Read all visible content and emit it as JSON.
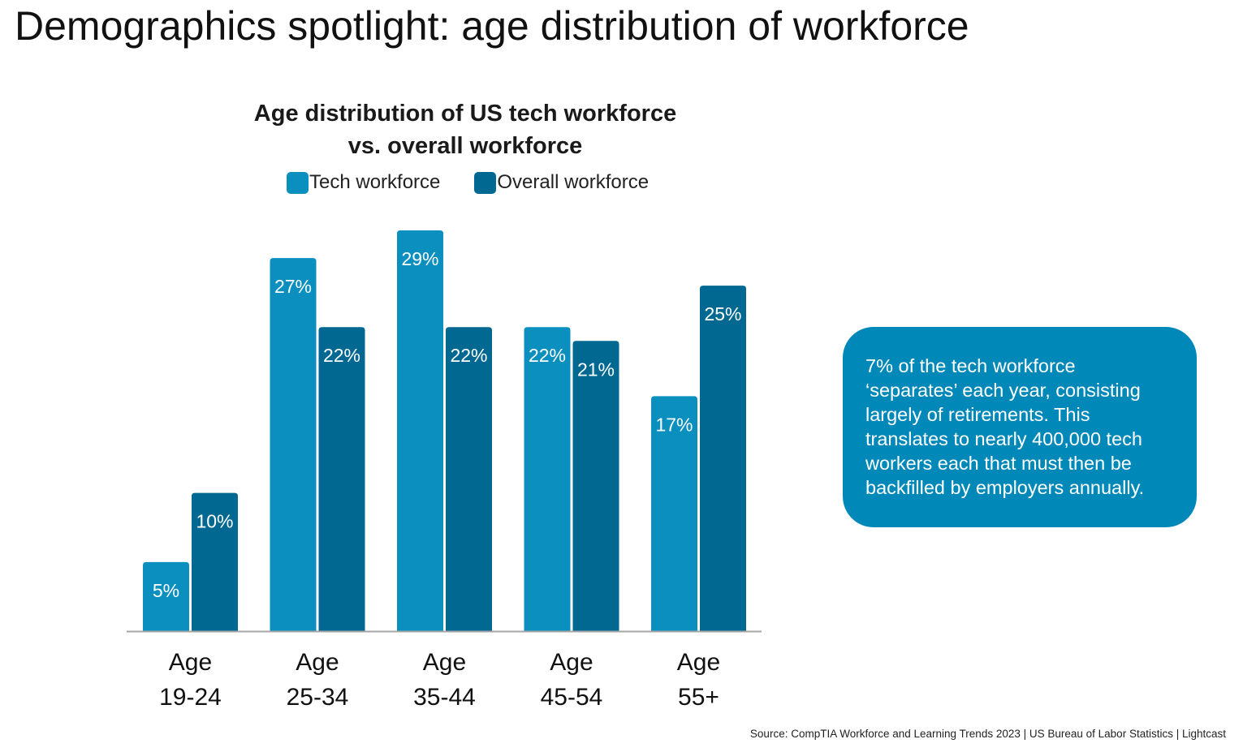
{
  "page_title": "Demographics spotlight: age distribution of workforce",
  "chart_data": {
    "type": "bar",
    "title_line1": "Age distribution of US tech workforce",
    "title_line2": "vs. overall workforce",
    "categories": [
      {
        "line1": "Age",
        "line2": "19-24"
      },
      {
        "line1": "Age",
        "line2": "25-34"
      },
      {
        "line1": "Age",
        "line2": "35-44"
      },
      {
        "line1": "Age",
        "line2": "45-54"
      },
      {
        "line1": "Age",
        "line2": "55+"
      }
    ],
    "series": [
      {
        "name": "Tech workforce",
        "color": "#0a8fbf",
        "values": [
          5,
          27,
          29,
          22,
          17
        ],
        "labels": [
          "5%",
          "27%",
          "29%",
          "22%",
          "17%"
        ]
      },
      {
        "name": "Overall workforce",
        "color": "#006891",
        "values": [
          10,
          22,
          22,
          21,
          25
        ],
        "labels": [
          "10%",
          "22%",
          "22%",
          "21%",
          "25%"
        ]
      }
    ],
    "ylim": [
      0,
      29
    ],
    "xlabel": "",
    "ylabel": "",
    "grid": false
  },
  "callout": {
    "lines": [
      "7% of the tech workforce",
      "‘separates’ each year, consisting",
      "largely of retirements. This",
      "translates to nearly 400,000 tech",
      "workers each that must then be",
      "backfilled by employers annually."
    ],
    "color": "#0088b8"
  },
  "source": "Source: CompTIA Workforce and Learning Trends 2023 | US Bureau of Labor Statistics | Lightcast"
}
